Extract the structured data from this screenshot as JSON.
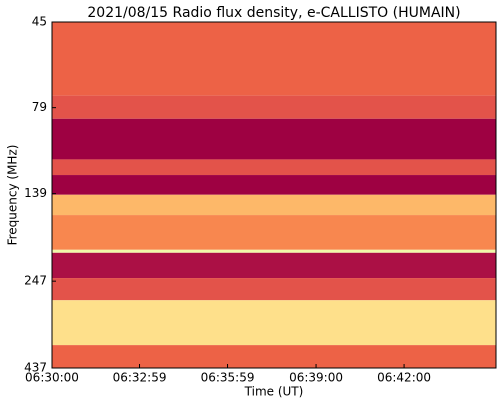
{
  "chart_data": {
    "type": "spectrogram",
    "title": "2021/08/15  Radio flux density, e-CALLISTO (HUMAIN)",
    "x_label": "Time (UT)",
    "y_label": "Frequency (MHz)",
    "xlim": [
      23400,
      24308
    ],
    "xticks": [
      {
        "value": 23400,
        "label": "06:30:00"
      },
      {
        "value": 23579,
        "label": "06:32:59"
      },
      {
        "value": 23759,
        "label": "06:35:59"
      },
      {
        "value": 23940,
        "label": "06:39:00"
      },
      {
        "value": 24120,
        "label": "06:42:00"
      }
    ],
    "ylim": [
      45,
      437
    ],
    "yticks": [
      45,
      79,
      139,
      247,
      437
    ],
    "log_y": true,
    "y_inverted": true,
    "bands": [
      45,
      73,
      85,
      111,
      123,
      140,
      160,
      201,
      205,
      242,
      280,
      376,
      437
    ],
    "values": [
      0.22,
      0.18,
      0.0,
      0.18,
      0.0,
      0.4,
      0.3,
      0.7,
      0.03,
      0.18,
      0.5,
      0.22
    ],
    "zlim": [
      0,
      1
    ],
    "colormap": [
      "#9e0142",
      "#d53e4f",
      "#f46d43",
      "#fdae61",
      "#fee08b",
      "#ffffbf",
      "#e6f598",
      "#abdda4",
      "#66c2a5"
    ]
  }
}
